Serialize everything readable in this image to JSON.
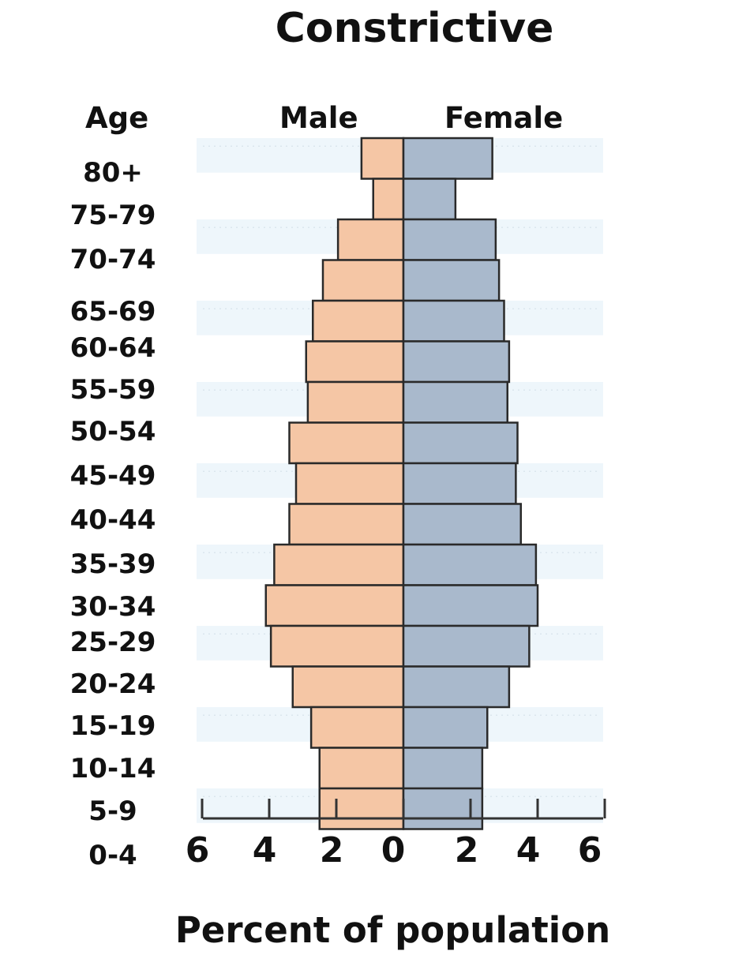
{
  "chart_data": {
    "type": "bar",
    "title": "Constrictive",
    "xlabel": "Percent of population",
    "ylabel": "Age",
    "categories": [
      "80+",
      "75-79",
      "70-74",
      "65-69",
      "60-64",
      "55-59",
      "50-54",
      "45-49",
      "40-44",
      "35-39",
      "30-34",
      "25-29",
      "20-24",
      "15-19",
      "10-14",
      "5-9",
      "0-4"
    ],
    "series": [
      {
        "name": "Male",
        "color": "#f5c6a5",
        "values": [
          1.25,
          0.9,
          1.95,
          2.4,
          2.7,
          2.9,
          2.85,
          3.4,
          3.2,
          3.4,
          3.85,
          4.1,
          3.95,
          3.3,
          2.75,
          2.5,
          2.5
        ]
      },
      {
        "name": "Female",
        "color": "#a9b9cc",
        "values": [
          2.65,
          1.55,
          2.75,
          2.85,
          3.0,
          3.15,
          3.1,
          3.4,
          3.35,
          3.5,
          3.95,
          4.0,
          3.75,
          3.15,
          2.5,
          2.35,
          2.35
        ]
      }
    ],
    "x_ticks": [
      "6",
      "4",
      "2",
      "0",
      "2",
      "4",
      "6"
    ],
    "xlim": [
      -6,
      6
    ],
    "grid": true
  }
}
